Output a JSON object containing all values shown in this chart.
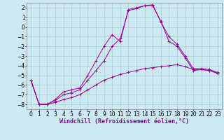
{
  "xlabel": "Windchill (Refroidissement éolien,°C)",
  "x_hours": [
    0,
    1,
    2,
    3,
    4,
    5,
    6,
    7,
    8,
    9,
    10,
    11,
    12,
    13,
    14,
    15,
    16,
    17,
    18,
    19,
    20,
    21,
    22,
    23
  ],
  "line1_y": [
    -5.5,
    -8.0,
    -8.0,
    -7.8,
    -7.5,
    -7.3,
    -7.0,
    -6.5,
    -6.0,
    -5.5,
    -5.2,
    -4.9,
    -4.7,
    -4.5,
    -4.3,
    -4.2,
    -4.1,
    -4.0,
    -3.9,
    -4.1,
    -4.4,
    -4.4,
    -4.5,
    -4.8
  ],
  "line2_y": [
    -5.5,
    -8.0,
    -8.0,
    -7.6,
    -7.0,
    -6.8,
    -6.5,
    -5.5,
    -4.5,
    -3.5,
    -2.0,
    -1.2,
    1.7,
    1.9,
    2.2,
    2.2,
    0.6,
    -1.5,
    -2.0,
    -3.2,
    -4.5,
    -4.4,
    -4.5,
    -4.8
  ],
  "line3_y": [
    -5.5,
    -8.0,
    -8.0,
    -7.5,
    -6.7,
    -6.5,
    -6.3,
    -5.0,
    -3.5,
    -2.0,
    -0.8,
    -1.5,
    1.8,
    2.0,
    2.2,
    2.3,
    0.5,
    -1.0,
    -1.8,
    -3.0,
    -4.3,
    -4.3,
    -4.4,
    -4.7
  ],
  "line_color": "#990099",
  "bg_color": "#cce8f0",
  "grid_color": "#aaccdd",
  "ylim": [
    -8.5,
    2.5
  ],
  "yticks": [
    -8,
    -7,
    -6,
    -5,
    -4,
    -3,
    -2,
    -1,
    0,
    1,
    2
  ],
  "xlabel_fontsize": 6,
  "tick_fontsize": 5.5,
  "marker": "+"
}
